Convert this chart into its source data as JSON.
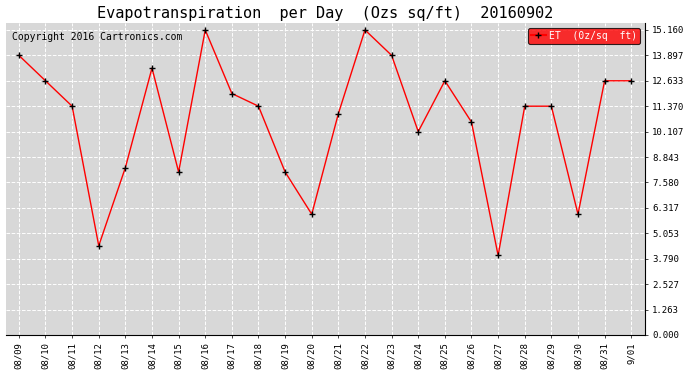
{
  "title": "Evapotranspiration  per Day  (Ozs sq/ft)  20160902",
  "copyright": "Copyright 2016 Cartronics.com",
  "legend_label": "ET  (0z/sq  ft)",
  "x_labels": [
    "08/09",
    "08/10",
    "08/11",
    "08/12",
    "08/13",
    "08/14",
    "08/15",
    "08/16",
    "08/17",
    "08/18",
    "08/19",
    "08/20",
    "08/21",
    "08/22",
    "08/23",
    "08/24",
    "08/25",
    "08/26",
    "08/27",
    "08/28",
    "08/29",
    "08/30",
    "08/31",
    "9/01"
  ],
  "y_values": [
    13.897,
    12.633,
    11.37,
    4.433,
    8.317,
    13.265,
    8.1,
    15.16,
    12.0,
    11.37,
    8.1,
    6.0,
    11.0,
    15.16,
    13.897,
    10.107,
    12.633,
    10.58,
    3.949,
    11.37,
    11.37,
    6.0,
    12.633,
    12.633
  ],
  "line_color": "red",
  "marker": "+",
  "marker_color": "black",
  "background_color": "#ffffff",
  "plot_bg_color": "#d8d8d8",
  "grid_color": "#ffffff",
  "yticks": [
    0.0,
    1.263,
    2.527,
    3.79,
    5.053,
    6.317,
    7.58,
    8.843,
    10.107,
    11.37,
    12.633,
    13.897,
    15.16
  ],
  "ylim": [
    0.0,
    15.5
  ],
  "title_fontsize": 11,
  "tick_fontsize": 6.5,
  "copyright_fontsize": 7,
  "legend_bg": "red",
  "legend_text_color": "white"
}
